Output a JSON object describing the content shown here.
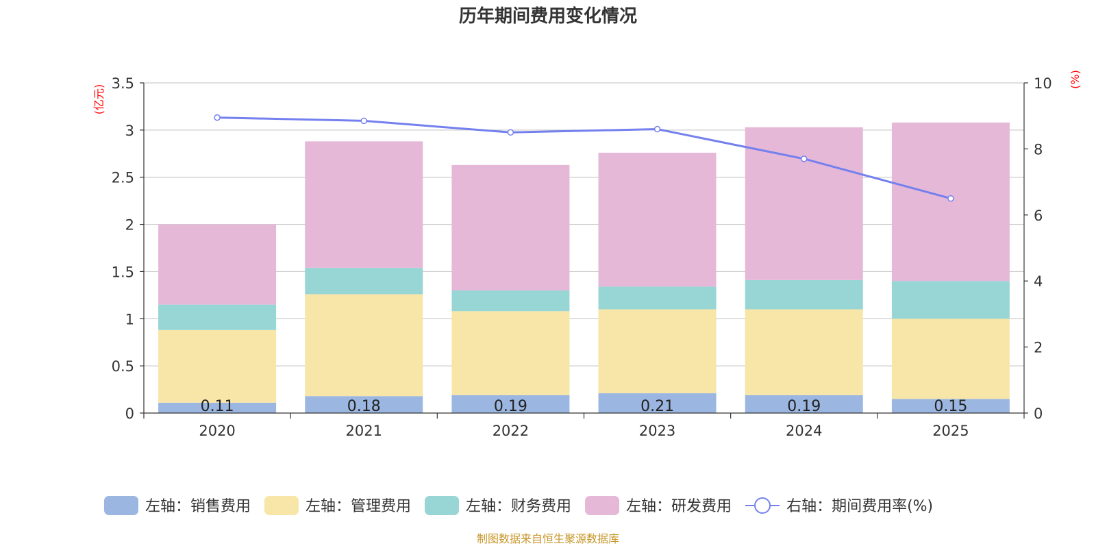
{
  "chart_data": {
    "type": "bar",
    "stacked": true,
    "title": "历年期间费用变化情况",
    "categories": [
      "2020",
      "2021",
      "2022",
      "2023",
      "2024",
      "2025"
    ],
    "left_axis": {
      "unit": "(亿元)",
      "ylim": [
        0,
        3.5
      ],
      "ticks": [
        "0",
        "0.5",
        "1",
        "1.5",
        "2",
        "2.5",
        "3",
        "3.5"
      ]
    },
    "right_axis": {
      "unit": "(%)",
      "ylim": [
        0,
        10
      ],
      "ticks": [
        "0",
        "2",
        "4",
        "6",
        "8",
        "10"
      ]
    },
    "series": [
      {
        "name": "左轴：销售费用",
        "type": "bar",
        "color": "#9bb7e1",
        "values": [
          0.11,
          0.18,
          0.19,
          0.21,
          0.19,
          0.15
        ],
        "labels": [
          "0.11",
          "0.18",
          "0.19",
          "0.21",
          "0.19",
          "0.15"
        ]
      },
      {
        "name": "左轴：管理费用",
        "type": "bar",
        "color": "#f7e6a8",
        "values": [
          0.77,
          1.08,
          0.89,
          0.89,
          0.91,
          0.85
        ]
      },
      {
        "name": "左轴：财务费用",
        "type": "bar",
        "color": "#98d5d5",
        "values": [
          0.27,
          0.28,
          0.22,
          0.24,
          0.31,
          0.4
        ]
      },
      {
        "name": "左轴：研发费用",
        "type": "bar",
        "color": "#e6b8d8",
        "values": [
          0.85,
          1.34,
          1.33,
          1.42,
          1.62,
          1.68
        ]
      },
      {
        "name": "右轴：期间费用率(%)",
        "type": "line",
        "axis": "right",
        "color": "#7480ee",
        "values": [
          8.95,
          8.85,
          8.5,
          8.6,
          7.7,
          6.5
        ]
      }
    ],
    "source": "制图数据来自恒生聚源数据库"
  }
}
